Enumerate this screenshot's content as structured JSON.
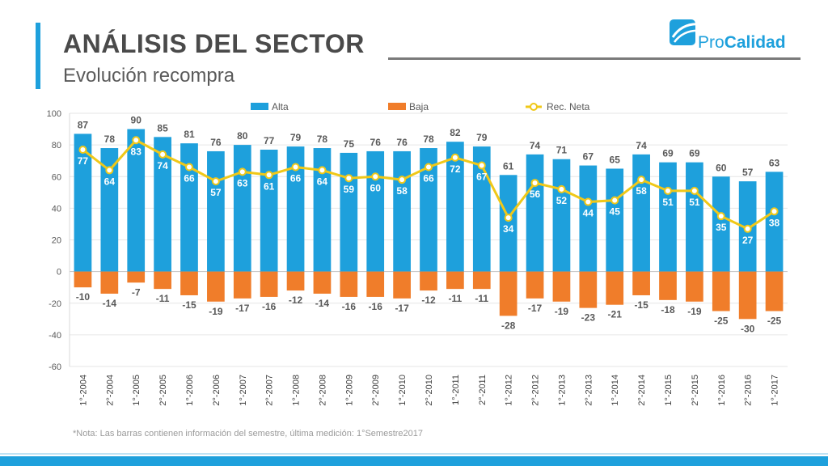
{
  "header": {
    "title": "ANÁLISIS DEL SECTOR",
    "subtitle": "Evolución recompra"
  },
  "logo": {
    "name_part1": "Pro",
    "name_part2": "Calidad",
    "icon": "procalidad-logo-icon"
  },
  "note": "*Nota: Las barras contienen información del semestre, última medición: 1°Semestre2017",
  "colors": {
    "alta": "#1ea0dc",
    "baja": "#f07d2a",
    "neta": "#f0c818",
    "accent": "#1ea0dc"
  },
  "chart_data": {
    "type": "bar",
    "title": "",
    "xlabel": "",
    "ylabel": "",
    "ylim": [
      -60,
      100
    ],
    "yticks": [
      100,
      80,
      60,
      40,
      20,
      0,
      -20,
      -40,
      -60
    ],
    "grid": true,
    "legend_position": "top",
    "categories": [
      "1°-2004",
      "2°-2004",
      "1°-2005",
      "2°-2005",
      "1°-2006",
      "2°-2006",
      "1°-2007",
      "2°-2007",
      "1°-2008",
      "2°-2008",
      "1°-2009",
      "2°-2009",
      "1°-2010",
      "2°-2010",
      "1°-2011",
      "2°-2011",
      "1°-2012",
      "2°-2012",
      "1°-2013",
      "2°-2013",
      "1°-2014",
      "2°-2014",
      "1°-2015",
      "2°-2015",
      "1°-2016",
      "2°-2016",
      "1°-2017"
    ],
    "series": [
      {
        "name": "Alta",
        "type": "bar",
        "values": [
          87,
          78,
          90,
          85,
          81,
          76,
          80,
          77,
          79,
          78,
          75,
          76,
          76,
          78,
          82,
          79,
          61,
          74,
          71,
          67,
          65,
          74,
          69,
          69,
          60,
          57,
          63
        ]
      },
      {
        "name": "Baja",
        "type": "bar",
        "values": [
          -10,
          -14,
          -7,
          -11,
          -15,
          -19,
          -17,
          -16,
          -12,
          -14,
          -16,
          -16,
          -17,
          -12,
          -11,
          -11,
          -28,
          -17,
          -19,
          -23,
          -21,
          -15,
          -18,
          -19,
          -25,
          -30,
          -25
        ]
      },
      {
        "name": "Rec. Neta",
        "type": "line",
        "values": [
          77,
          64,
          83,
          74,
          66,
          57,
          63,
          61,
          66,
          64,
          59,
          60,
          58,
          66,
          72,
          67,
          34,
          56,
          52,
          44,
          45,
          58,
          51,
          51,
          35,
          27,
          38
        ]
      }
    ]
  }
}
